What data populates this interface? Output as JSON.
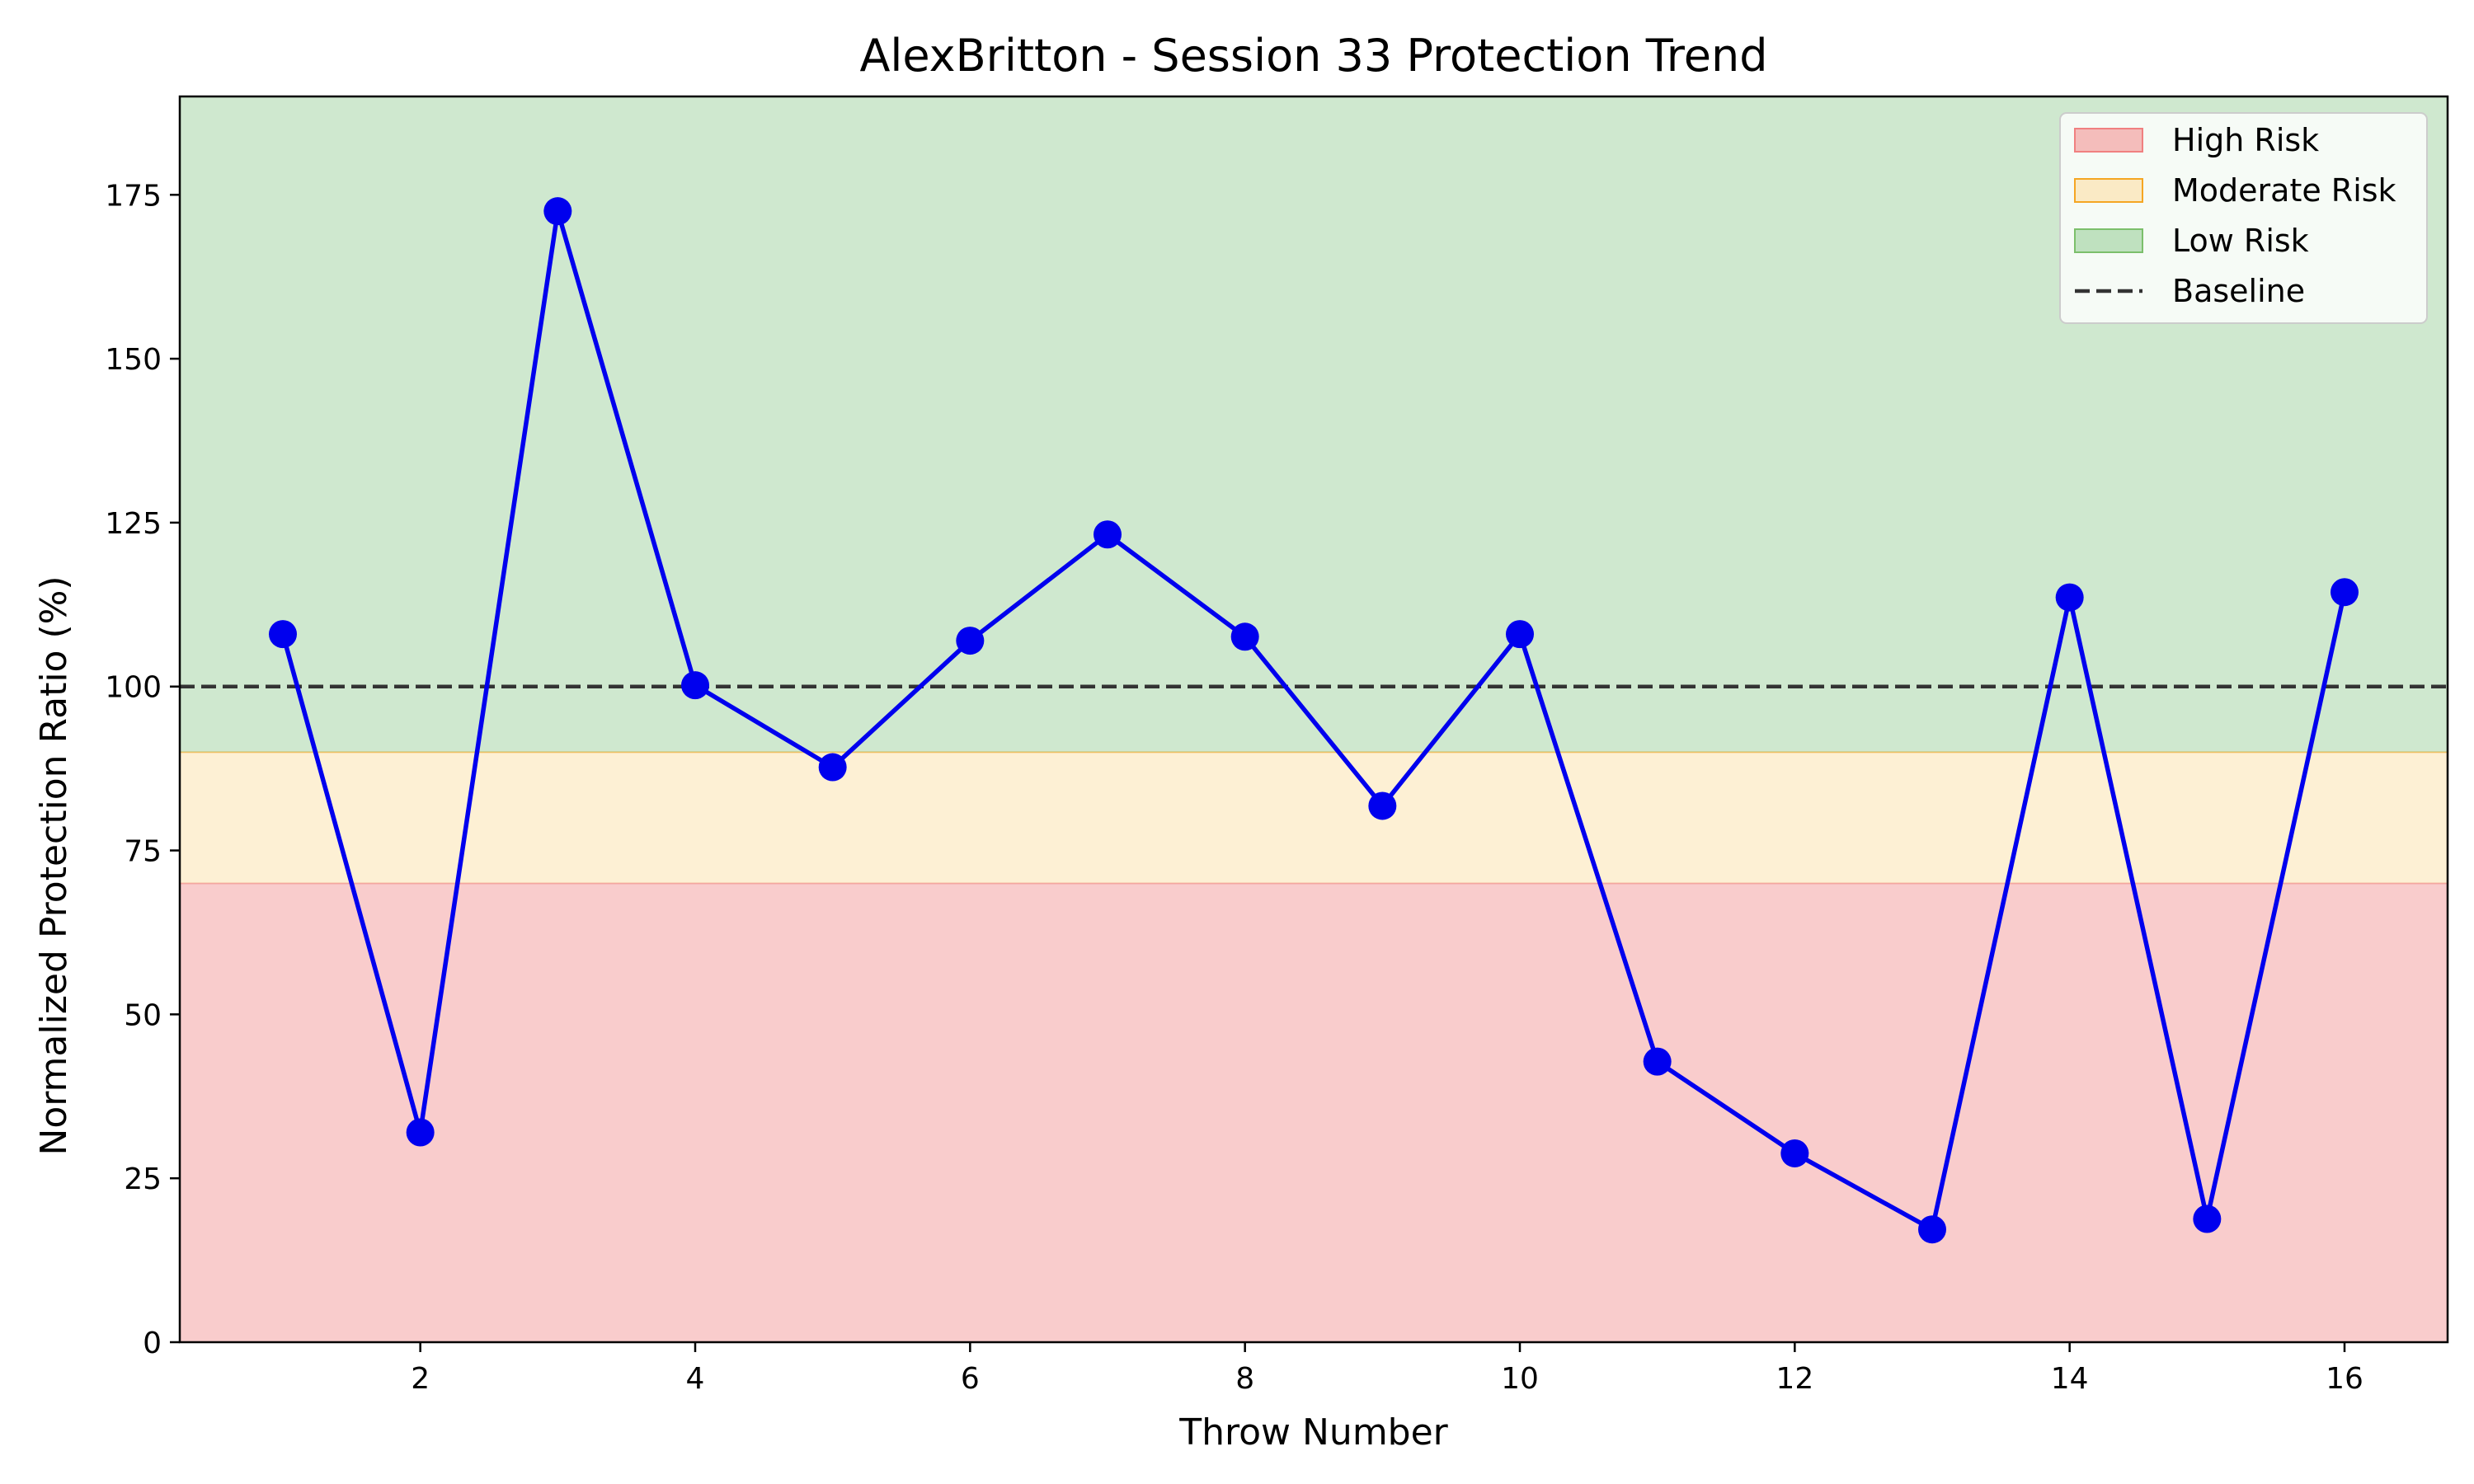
{
  "chart_data": {
    "type": "line",
    "title": "AlexBritton - Session 33 Protection Trend",
    "xlabel": "Throw Number",
    "ylabel": "Normalized Protection Ratio (%)",
    "xlim": [
      0.25,
      16.75
    ],
    "ylim": [
      0,
      190
    ],
    "x_ticks": [
      2,
      4,
      6,
      8,
      10,
      12,
      14,
      16
    ],
    "y_ticks": [
      0,
      25,
      50,
      75,
      100,
      125,
      150,
      175
    ],
    "grid": false,
    "legend_position": "top-right",
    "series": [
      {
        "x": [
          1,
          2,
          3,
          4,
          5,
          6,
          7,
          8,
          9,
          10,
          11,
          12,
          13,
          14,
          15,
          16
        ],
        "values": [
          108,
          32,
          172.5,
          100.2,
          87.7,
          107,
          123.2,
          107.6,
          81.8,
          108,
          42.8,
          28.8,
          17.2,
          113.6,
          18.8,
          114.4
        ],
        "color": "#0000ee"
      }
    ],
    "zones": [
      {
        "name": "High Risk",
        "from": 0,
        "to": 70,
        "color": "#f4a3a3",
        "edge": "#f08080"
      },
      {
        "name": "Moderate Risk",
        "from": 70,
        "to": 90,
        "color": "#fce3b0",
        "edge": "#f5a623"
      },
      {
        "name": "Low Risk",
        "from": 90,
        "to": 190,
        "color": "#a8d5a8",
        "edge": "#7cbf6b"
      }
    ],
    "baseline": {
      "name": "Baseline",
      "value": 100,
      "color": "#333333"
    }
  }
}
